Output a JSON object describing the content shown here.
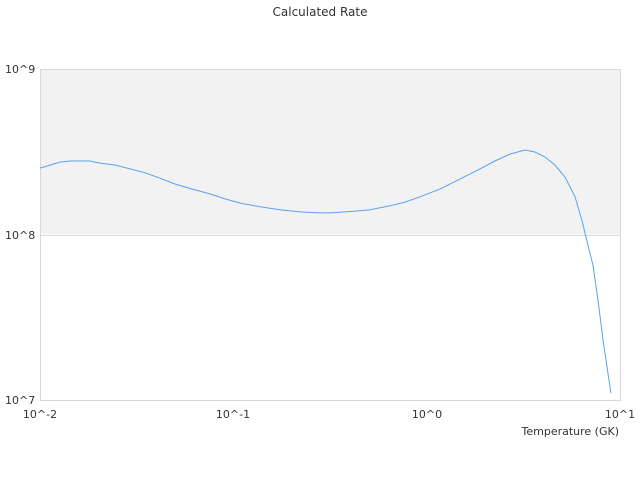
{
  "chart_data": {
    "type": "line",
    "title": "Calculated Rate",
    "xlabel": "Temperature (GK)",
    "ylabel": "",
    "xscale": "log",
    "yscale": "log",
    "xlim": [
      0.01,
      10
    ],
    "ylim": [
      10000000,
      1000000000
    ],
    "x_tick_labels": [
      "10^-2",
      "10^-1",
      "10^0",
      "10^1"
    ],
    "y_tick_labels": [
      "10^7",
      "10^8",
      "10^9"
    ],
    "grid": true,
    "band": {
      "from": 100000000,
      "to": 1000000000,
      "color": "#f2f2f2"
    },
    "line_color": "#5aa2ec",
    "series": [
      {
        "x": [
          0.01,
          0.01268,
          0.01429,
          0.01816,
          0.02042,
          0.02443,
          0.02924,
          0.03491,
          0.04178,
          0.04989,
          0.06339,
          0.07568,
          0.09057,
          0.1081,
          0.1374,
          0.1742,
          0.2213,
          0.2805,
          0.3162,
          0.3784,
          0.4519,
          0.5093,
          0.6457,
          0.7727,
          0.9247,
          1.172,
          1.486,
          1.888,
          2.254,
          2.698,
          3.228,
          3.631,
          4.093,
          4.613,
          5.2,
          5.848,
          6.353,
          6.823,
          7.244,
          7.691,
          8.166,
          8.974
        ],
        "y": [
          252000000.0,
          274000000.0,
          278000000.0,
          278000000.0,
          270000000.0,
          263000000.0,
          249000000.0,
          236000000.0,
          219000000.0,
          202000000.0,
          186000000.0,
          176000000.0,
          164000000.0,
          155000000.0,
          147000000.0,
          141000000.0,
          137000000.0,
          135000000.0,
          135000000.0,
          137000000.0,
          139000000.0,
          141000000.0,
          149000000.0,
          157000000.0,
          169000000.0,
          188000000.0,
          216000000.0,
          249000000.0,
          278000000.0,
          306000000.0,
          324000000.0,
          315000000.0,
          294000000.0,
          263000000.0,
          222000000.0,
          169000000.0,
          122000000.0,
          86500000.0,
          65500000.0,
          40200000.0,
          23100000.0,
          11000000.0
        ]
      }
    ]
  }
}
